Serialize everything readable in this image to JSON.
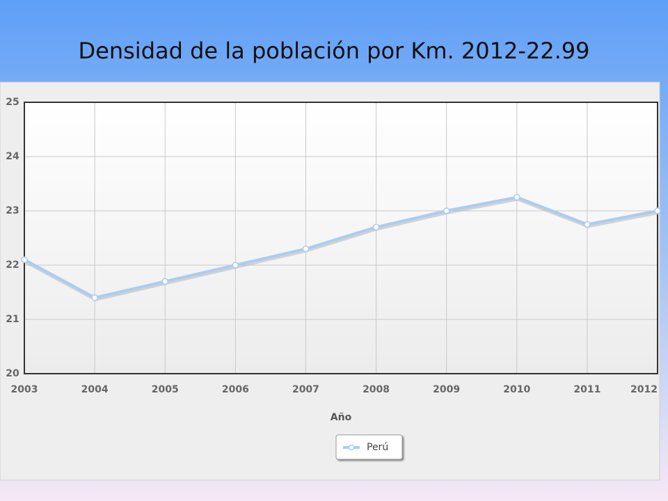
{
  "chart_data": {
    "type": "line",
    "title": "Densidad de la población por Km. 2012-22.99",
    "x": [
      2003,
      2004,
      2005,
      2006,
      2007,
      2008,
      2009,
      2010,
      2011,
      2012
    ],
    "series": [
      {
        "name": "Perú",
        "color": "#a9cdf2",
        "values": [
          22.1,
          21.4,
          21.7,
          22.0,
          22.3,
          22.7,
          23.0,
          23.25,
          22.75,
          23.0
        ]
      }
    ],
    "xlabel": "Año",
    "xlim": [
      2003,
      2012
    ],
    "xticks": [
      2003,
      2004,
      2005,
      2006,
      2007,
      2008,
      2009,
      2010,
      2011,
      2012
    ],
    "ylim": [
      20,
      25
    ],
    "yticks": [
      20,
      21,
      22,
      23,
      24,
      25
    ],
    "grid": true
  }
}
